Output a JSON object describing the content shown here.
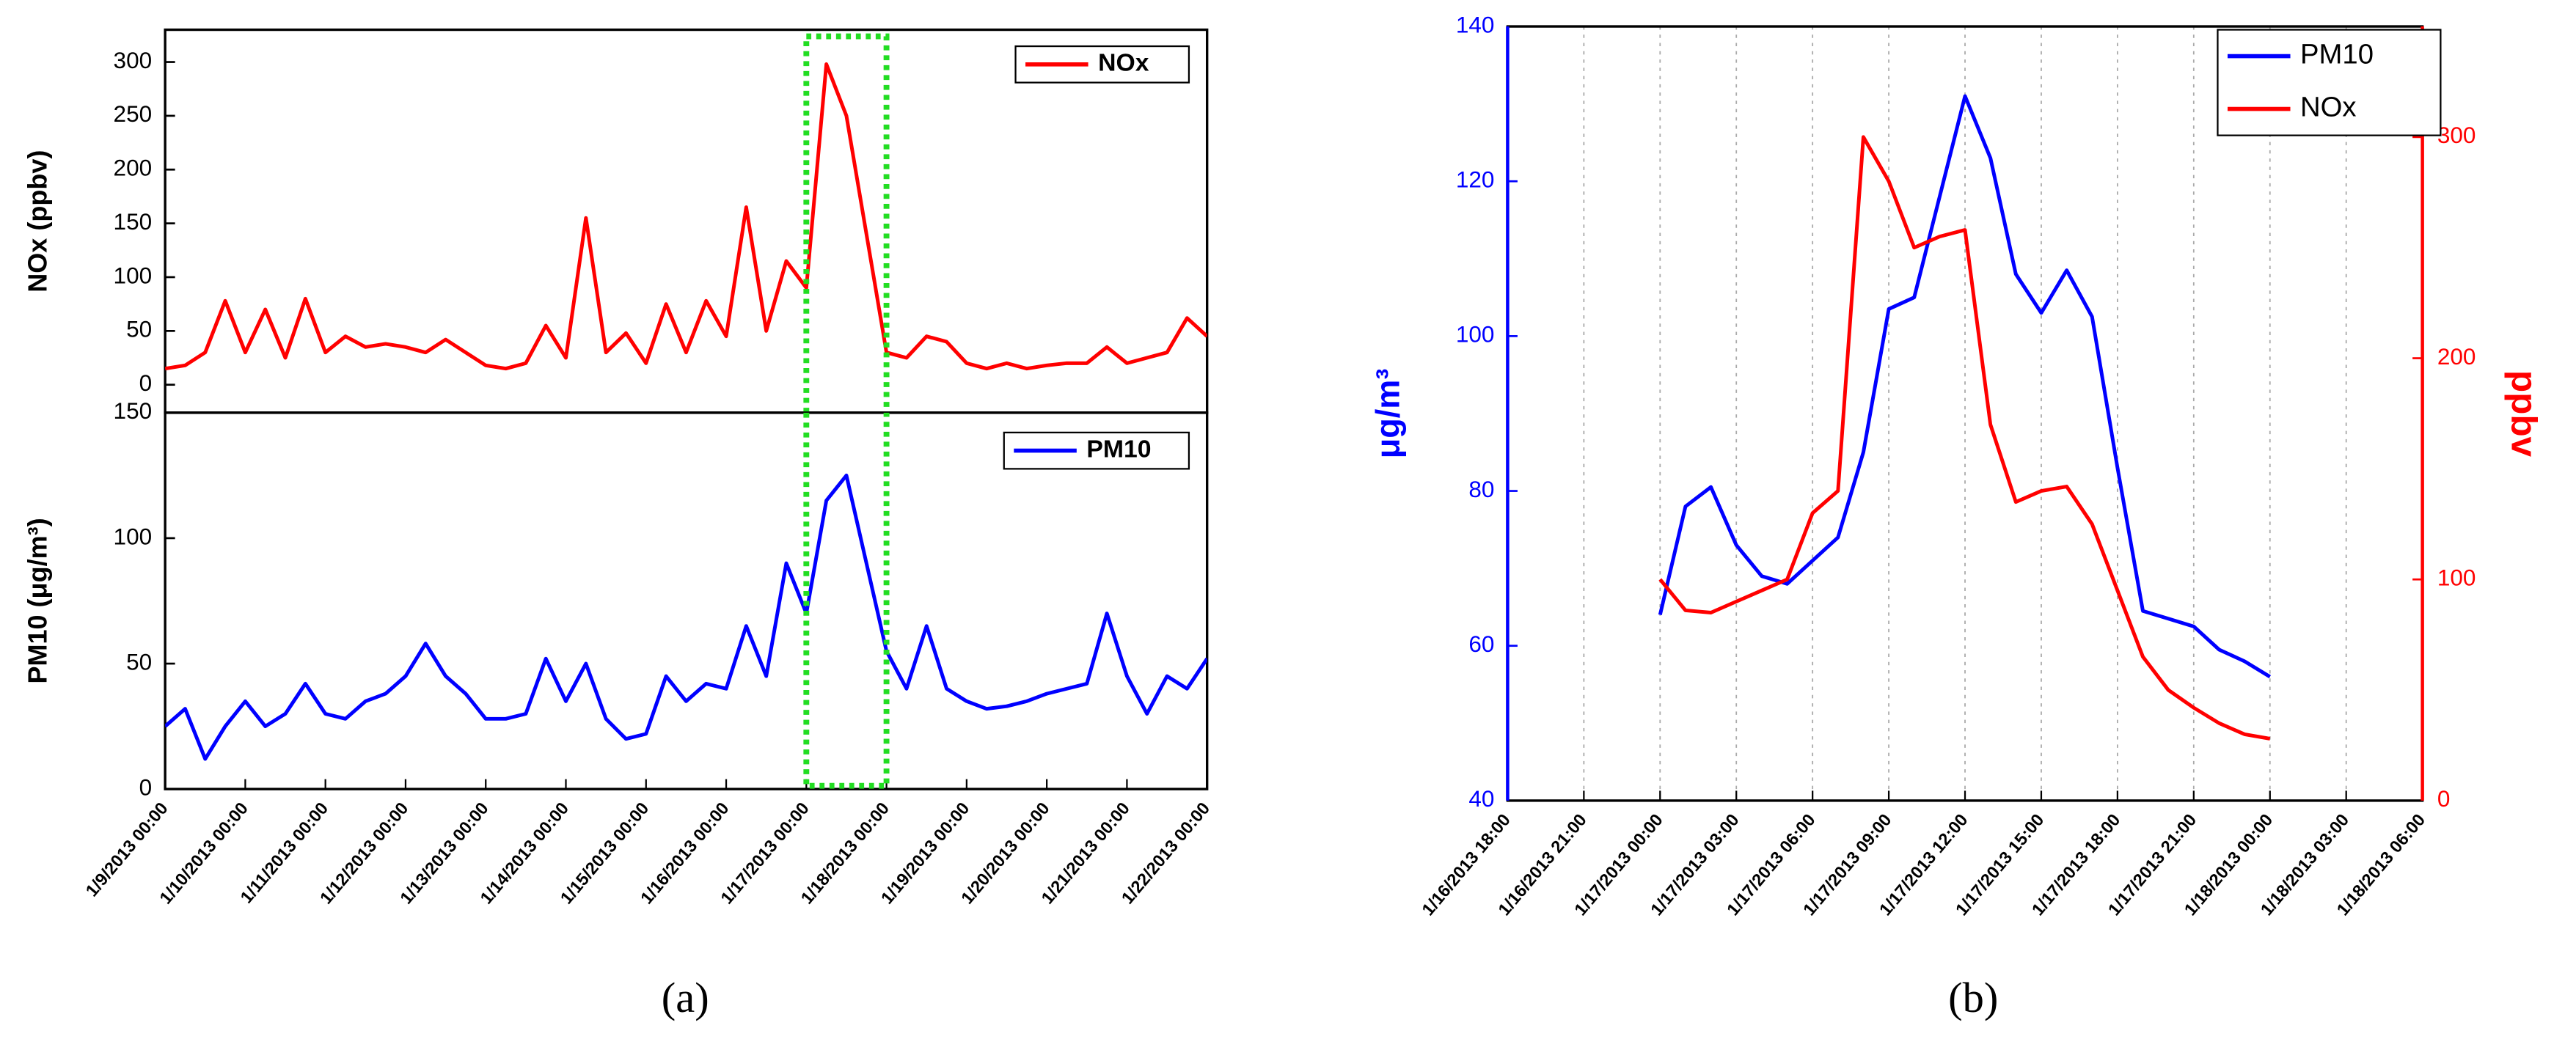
{
  "chart_data": [
    {
      "type": "line",
      "ylabel": "NOx (ppbv)",
      "x": [
        "1/9/2013 00:00",
        "1/9/2013 06:00",
        "1/9/2013 12:00",
        "1/9/2013 18:00",
        "1/10/2013 00:00",
        "1/10/2013 06:00",
        "1/10/2013 12:00",
        "1/10/2013 18:00",
        "1/11/2013 00:00",
        "1/11/2013 06:00",
        "1/11/2013 12:00",
        "1/11/2013 18:00",
        "1/12/2013 00:00",
        "1/12/2013 06:00",
        "1/12/2013 12:00",
        "1/12/2013 18:00",
        "1/13/2013 00:00",
        "1/13/2013 06:00",
        "1/13/2013 12:00",
        "1/13/2013 18:00",
        "1/14/2013 00:00",
        "1/14/2013 06:00",
        "1/14/2013 12:00",
        "1/14/2013 18:00",
        "1/15/2013 00:00",
        "1/15/2013 06:00",
        "1/15/2013 12:00",
        "1/15/2013 18:00",
        "1/16/2013 00:00",
        "1/16/2013 06:00",
        "1/16/2013 12:00",
        "1/16/2013 18:00",
        "1/17/2013 00:00",
        "1/17/2013 06:00",
        "1/17/2013 12:00",
        "1/17/2013 18:00",
        "1/18/2013 00:00",
        "1/18/2013 06:00",
        "1/18/2013 12:00",
        "1/18/2013 18:00",
        "1/19/2013 00:00",
        "1/19/2013 06:00",
        "1/19/2013 12:00",
        "1/19/2013 18:00",
        "1/20/2013 00:00",
        "1/20/2013 06:00",
        "1/20/2013 12:00",
        "1/20/2013 18:00",
        "1/21/2013 00:00",
        "1/21/2013 06:00",
        "1/21/2013 12:00",
        "1/21/2013 18:00",
        "1/22/2013 00:00"
      ],
      "series": [
        {
          "name": "NOx",
          "color": "#ff0000",
          "values": [
            15,
            18,
            30,
            78,
            30,
            70,
            25,
            80,
            30,
            45,
            35,
            38,
            35,
            30,
            42,
            30,
            18,
            15,
            20,
            55,
            25,
            155,
            30,
            48,
            20,
            75,
            30,
            78,
            45,
            165,
            50,
            115,
            90,
            298,
            250,
            140,
            30,
            25,
            45,
            40,
            20,
            15,
            20,
            15,
            18,
            20,
            20,
            35,
            20,
            25,
            30,
            62,
            45
          ]
        }
      ],
      "xlim": [
        "1/9/2013 00:00",
        "1/22/2013 00:00"
      ],
      "ylim": [
        -26,
        330
      ],
      "yticks": [
        0,
        50,
        100,
        150,
        200,
        250,
        300
      ],
      "legend": "upper right",
      "highlight": [
        "1/17/2013 00:00",
        "1/18/2013 00:00"
      ],
      "highlight_color": "#22dd22"
    },
    {
      "type": "line",
      "ylabel": "PM10 (μg/m³)",
      "x": [
        "1/9/2013 00:00",
        "1/9/2013 06:00",
        "1/9/2013 12:00",
        "1/9/2013 18:00",
        "1/10/2013 00:00",
        "1/10/2013 06:00",
        "1/10/2013 12:00",
        "1/10/2013 18:00",
        "1/11/2013 00:00",
        "1/11/2013 06:00",
        "1/11/2013 12:00",
        "1/11/2013 18:00",
        "1/12/2013 00:00",
        "1/12/2013 06:00",
        "1/12/2013 12:00",
        "1/12/2013 18:00",
        "1/13/2013 00:00",
        "1/13/2013 06:00",
        "1/13/2013 12:00",
        "1/13/2013 18:00",
        "1/14/2013 00:00",
        "1/14/2013 06:00",
        "1/14/2013 12:00",
        "1/14/2013 18:00",
        "1/15/2013 00:00",
        "1/15/2013 06:00",
        "1/15/2013 12:00",
        "1/15/2013 18:00",
        "1/16/2013 00:00",
        "1/16/2013 06:00",
        "1/16/2013 12:00",
        "1/16/2013 18:00",
        "1/17/2013 00:00",
        "1/17/2013 06:00",
        "1/17/2013 12:00",
        "1/17/2013 18:00",
        "1/18/2013 00:00",
        "1/18/2013 06:00",
        "1/18/2013 12:00",
        "1/18/2013 18:00",
        "1/19/2013 00:00",
        "1/19/2013 06:00",
        "1/19/2013 12:00",
        "1/19/2013 18:00",
        "1/20/2013 00:00",
        "1/20/2013 06:00",
        "1/20/2013 12:00",
        "1/20/2013 18:00",
        "1/21/2013 00:00",
        "1/21/2013 06:00",
        "1/21/2013 12:00",
        "1/21/2013 18:00",
        "1/22/2013 00:00"
      ],
      "series": [
        {
          "name": "PM10",
          "color": "#0000ff",
          "values": [
            25,
            32,
            12,
            25,
            35,
            25,
            30,
            42,
            30,
            28,
            35,
            38,
            45,
            58,
            45,
            38,
            28,
            28,
            30,
            52,
            35,
            50,
            28,
            20,
            22,
            45,
            35,
            42,
            40,
            65,
            45,
            90,
            70,
            115,
            125,
            90,
            55,
            40,
            65,
            40,
            35,
            32,
            33,
            35,
            38,
            40,
            42,
            70,
            45,
            30,
            45,
            40,
            52
          ]
        }
      ],
      "xlim": [
        "1/9/2013 00:00",
        "1/22/2013 00:00"
      ],
      "xticks": [
        "1/9/2013 00:00",
        "1/10/2013 00:00",
        "1/11/2013 00:00",
        "1/12/2013 00:00",
        "1/13/2013 00:00",
        "1/14/2013 00:00",
        "1/15/2013 00:00",
        "1/16/2013 00:00",
        "1/17/2013 00:00",
        "1/18/2013 00:00",
        "1/19/2013 00:00",
        "1/20/2013 00:00",
        "1/21/2013 00:00",
        "1/22/2013 00:00"
      ],
      "ylim": [
        0,
        150
      ],
      "yticks": [
        0,
        50,
        100,
        150
      ],
      "legend": "upper right",
      "highlight": [
        "1/17/2013 00:00",
        "1/18/2013 00:00"
      ],
      "highlight_color": "#22dd22"
    },
    {
      "type": "line",
      "ylabel": "μg/m³",
      "y2label": "ppbv",
      "x": [
        "1/17/2013 00:00",
        "1/17/2013 01:00",
        "1/17/2013 02:00",
        "1/17/2013 03:00",
        "1/17/2013 04:00",
        "1/17/2013 05:00",
        "1/17/2013 06:00",
        "1/17/2013 07:00",
        "1/17/2013 08:00",
        "1/17/2013 09:00",
        "1/17/2013 10:00",
        "1/17/2013 11:00",
        "1/17/2013 12:00",
        "1/17/2013 13:00",
        "1/17/2013 14:00",
        "1/17/2013 15:00",
        "1/17/2013 16:00",
        "1/17/2013 17:00",
        "1/17/2013 18:00",
        "1/17/2013 19:00",
        "1/17/2013 20:00",
        "1/17/2013 21:00",
        "1/17/2013 22:00",
        "1/17/2013 23:00",
        "1/18/2013 00:00"
      ],
      "series": [
        {
          "name": "PM10",
          "color": "#0000ff",
          "axis": "y",
          "values": [
            64,
            78,
            80.5,
            73,
            69,
            68,
            71,
            74,
            85,
            103.5,
            105,
            118,
            131,
            123,
            108,
            103,
            108.5,
            102.5,
            83,
            64.5,
            63.5,
            62.5,
            59.5,
            58,
            56
          ]
        },
        {
          "name": "NOx",
          "color": "#ff0000",
          "axis": "y2",
          "values": [
            100,
            86,
            85,
            90,
            95,
            100,
            130,
            140,
            300,
            280,
            250,
            255,
            258,
            170,
            135,
            140,
            142,
            125,
            95,
            65,
            50,
            42,
            35,
            30,
            28
          ]
        }
      ],
      "xlim": [
        "1/16/2013 18:00",
        "1/18/2013 06:00"
      ],
      "xticks": [
        "1/16/2013 18:00",
        "1/16/2013 21:00",
        "1/17/2013 00:00",
        "1/17/2013 03:00",
        "1/17/2013 06:00",
        "1/17/2013 09:00",
        "1/17/2013 12:00",
        "1/17/2013 15:00",
        "1/17/2013 18:00",
        "1/17/2013 21:00",
        "1/18/2013 00:00",
        "1/18/2013 03:00",
        "1/18/2013 06:00"
      ],
      "ylim": [
        40,
        140
      ],
      "yticks": [
        40,
        60,
        80,
        100,
        120,
        140
      ],
      "y_color": "#0000ff",
      "y2lim": [
        0,
        350
      ],
      "y2ticks": [
        0,
        100,
        200,
        300
      ],
      "y2_color": "#ff0000",
      "grid": "x",
      "legend": "upper right"
    }
  ],
  "captions": [
    "(a)",
    "(b)"
  ]
}
